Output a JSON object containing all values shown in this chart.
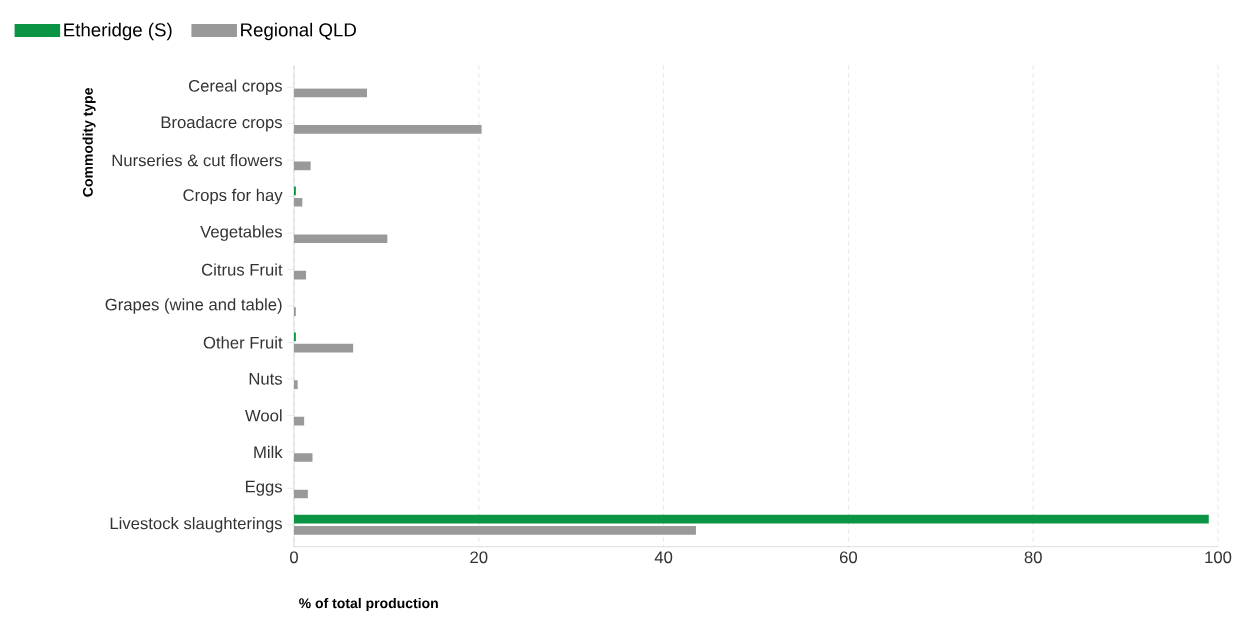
{
  "chart_data": {
    "type": "bar",
    "orientation": "horizontal",
    "xlabel": "% of total production",
    "ylabel": "Commodity type",
    "categories": [
      "Cereal crops",
      "Broadacre crops",
      "Nurseries & cut flowers",
      "Crops for hay",
      "Vegetables",
      "Citrus Fruit",
      "Grapes (wine and table)",
      "Other Fruit",
      "Nuts",
      "Wool",
      "Milk",
      "Eggs",
      "Livestock slaughterings"
    ],
    "series": [
      {
        "name": "Etheridge (S)",
        "color": "#0a9443",
        "values": [
          0,
          0,
          0,
          0.2,
          0,
          0,
          0,
          0.2,
          0,
          0,
          0,
          0,
          99.0
        ]
      },
      {
        "name": "Regional QLD",
        "color": "#999999",
        "values": [
          7.9,
          20.3,
          1.8,
          0.9,
          10.1,
          1.3,
          0.2,
          6.4,
          0.4,
          1.1,
          2.0,
          1.5,
          43.5
        ]
      }
    ],
    "xlim": [
      0,
      100
    ],
    "xticks": [
      0,
      20,
      40,
      60,
      80,
      100
    ],
    "grid": "x",
    "legend": "top left"
  }
}
